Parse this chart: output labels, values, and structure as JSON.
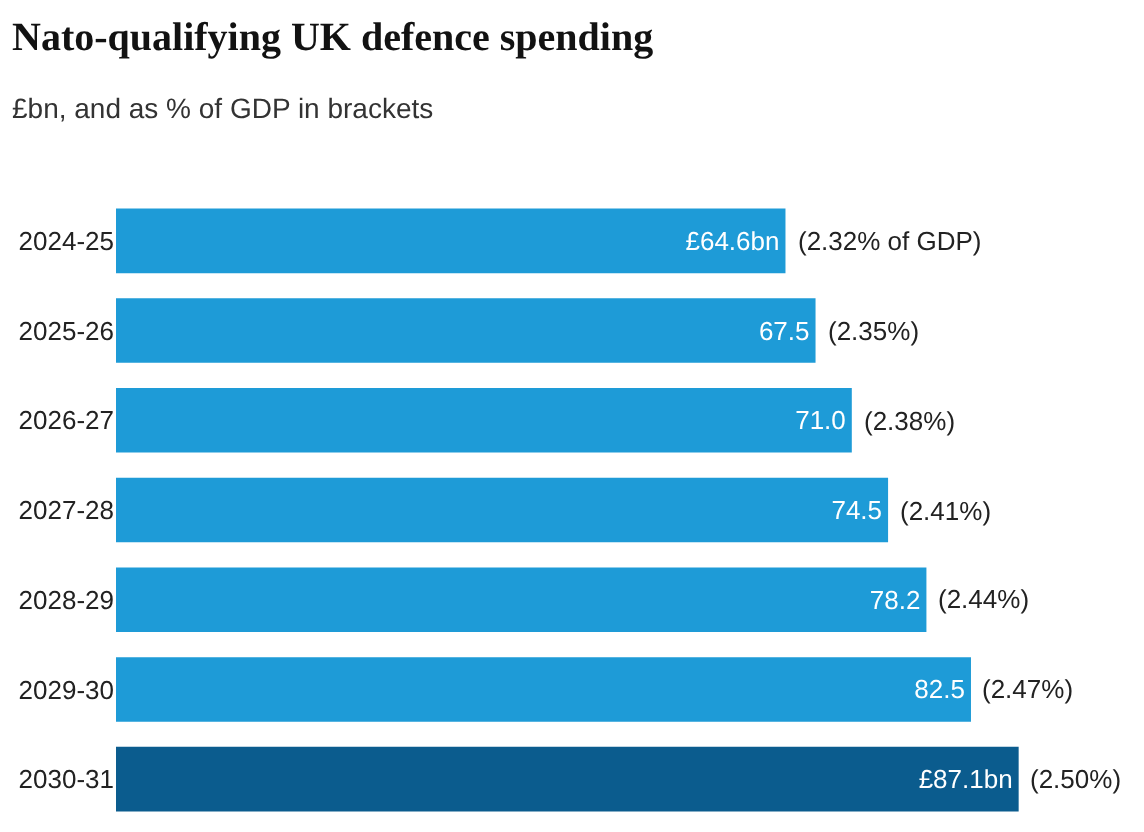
{
  "chart_data": {
    "type": "bar",
    "orientation": "horizontal",
    "title": "Nato-qualifying UK defence spending",
    "subtitle": "£bn, and as % of GDP in brackets",
    "categories": [
      "2024-25",
      "2025-26",
      "2026-27",
      "2027-28",
      "2028-29",
      "2029-30",
      "2030-31"
    ],
    "values": [
      64.6,
      67.5,
      71.0,
      74.5,
      78.2,
      82.5,
      87.1
    ],
    "colors": [
      "#1e9bd7",
      "#1e9bd7",
      "#1e9bd7",
      "#1e9bd7",
      "#1e9bd7",
      "#1e9bd7",
      "#0b5c8e"
    ],
    "value_labels": [
      "£64.6bn",
      "67.5",
      "71.0",
      "74.5",
      "78.2",
      "82.5",
      "£87.1bn"
    ],
    "annotations": [
      {
        "text": "(2.32% of GDP)",
        "x": 64.6,
        "y": "2024-25"
      },
      {
        "text": "(2.35%)",
        "x": 67.5,
        "y": "2025-26"
      },
      {
        "text": "(2.38%)",
        "x": 71.0,
        "y": "2026-27"
      },
      {
        "text": "(2.41%)",
        "x": 74.5,
        "y": "2027-28"
      },
      {
        "text": "(2.44%)",
        "x": 78.2,
        "y": "2028-29"
      },
      {
        "text": "(2.47%)",
        "x": 82.5,
        "y": "2029-30"
      },
      {
        "text": "(2.50%)",
        "x": 87.1,
        "y": "2030-31"
      }
    ],
    "grid": false,
    "legend": false
  }
}
